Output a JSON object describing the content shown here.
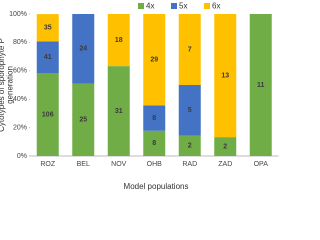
{
  "chart_data": {
    "type": "stacked_bar",
    "y_label": [
      "Cytotypes of sporophyte P",
      "generation"
    ],
    "x_label": "Model populations",
    "categories": [
      "ROZ",
      "BEL",
      "NOV",
      "OHB",
      "RAD",
      "ZAD",
      "OPA"
    ],
    "series": [
      {
        "name": "4x",
        "color": "#70ad47",
        "values": [
          58.2,
          51,
          63.3,
          17.8,
          14.3,
          13.3,
          100
        ],
        "counts": [
          106,
          25,
          31,
          8,
          2,
          2,
          11
        ]
      },
      {
        "name": "5x",
        "color": "#4472c4",
        "values": [
          22.5,
          49,
          0,
          17.8,
          35.7,
          0,
          0
        ],
        "counts": [
          41,
          24,
          null,
          8,
          5,
          null,
          null
        ]
      },
      {
        "name": "6x",
        "color": "#ffc000",
        "values": [
          19.2,
          0,
          36.7,
          64.4,
          50,
          86.7,
          0
        ],
        "counts": [
          35,
          null,
          18,
          29,
          7,
          13,
          null
        ]
      }
    ],
    "ylim": [
      0,
      100
    ],
    "yticks": [
      {
        "value": 0,
        "label": "0%"
      },
      {
        "value": 20,
        "label": "20%"
      },
      {
        "value": 40,
        "label": "40%"
      },
      {
        "value": 60,
        "label": "60%"
      },
      {
        "value": 80,
        "label": "80%"
      },
      {
        "value": 100,
        "label": "100%"
      }
    ],
    "legend": "top"
  }
}
